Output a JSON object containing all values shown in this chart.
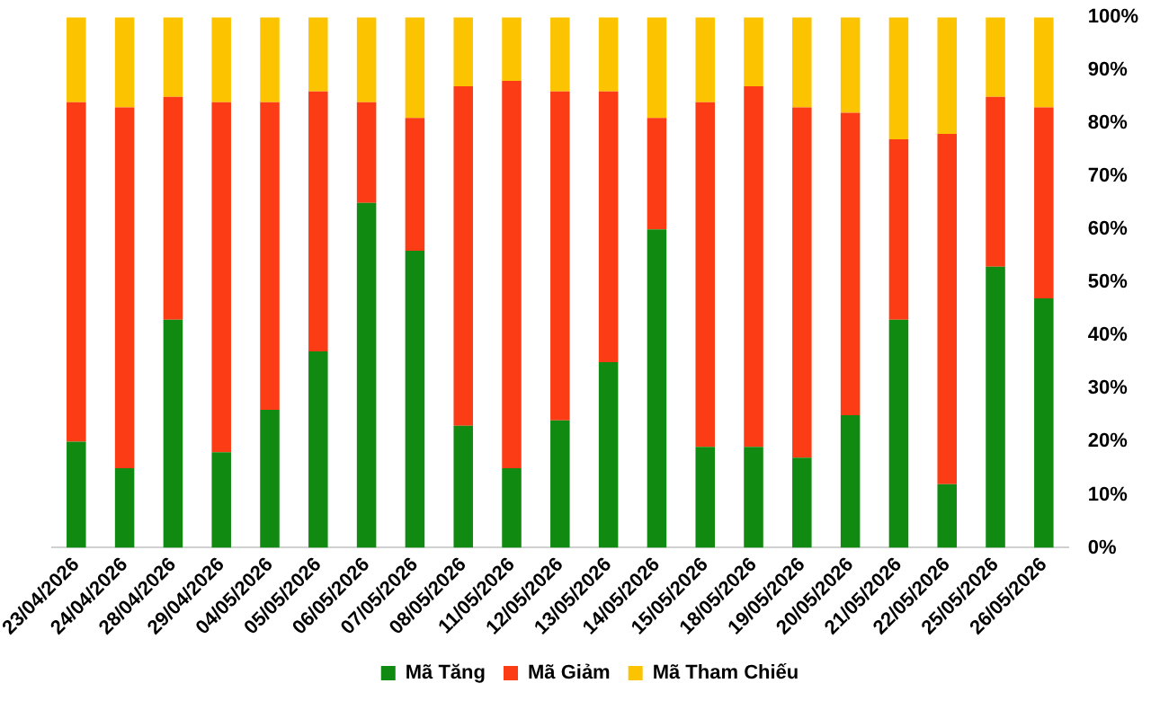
{
  "chart_data": {
    "type": "bar",
    "stacked": true,
    "categories": [
      "23/04/2026",
      "24/04/2026",
      "28/04/2026",
      "29/04/2026",
      "04/05/2026",
      "05/05/2026",
      "06/05/2026",
      "07/05/2026",
      "08/05/2026",
      "11/05/2026",
      "12/05/2026",
      "13/05/2026",
      "14/05/2026",
      "15/05/2026",
      "18/05/2026",
      "19/05/2026",
      "20/05/2026",
      "21/05/2026",
      "22/05/2026",
      "25/05/2026",
      "26/05/2026"
    ],
    "series": [
      {
        "name": "Mã Tăng",
        "color": "#108a10",
        "values": [
          20,
          15,
          43,
          18,
          26,
          37,
          65,
          56,
          23,
          15,
          24,
          35,
          60,
          19,
          19,
          17,
          25,
          43,
          12,
          53,
          47
        ]
      },
      {
        "name": "Mã Giảm",
        "color": "#fc3c14",
        "values": [
          64,
          68,
          42,
          66,
          58,
          49,
          19,
          25,
          64,
          73,
          62,
          51,
          21,
          65,
          68,
          66,
          57,
          34,
          66,
          32,
          36
        ]
      },
      {
        "name": "Mã Tham Chiếu",
        "color": "#fcc400",
        "values": [
          16,
          17,
          15,
          16,
          16,
          14,
          16,
          19,
          13,
          12,
          14,
          14,
          19,
          16,
          13,
          17,
          18,
          23,
          22,
          15,
          17
        ]
      }
    ],
    "ylim": [
      0,
      100
    ],
    "yticks": [
      {
        "value": 0,
        "label": "0%"
      },
      {
        "value": 10,
        "label": "10%"
      },
      {
        "value": 20,
        "label": "20%"
      },
      {
        "value": 30,
        "label": "30%"
      },
      {
        "value": 40,
        "label": "40%"
      },
      {
        "value": 50,
        "label": "50%"
      },
      {
        "value": 60,
        "label": "60%"
      },
      {
        "value": 70,
        "label": "70%"
      },
      {
        "value": 80,
        "label": "80%"
      },
      {
        "value": 90,
        "label": "90%"
      },
      {
        "value": 100,
        "label": "100%"
      }
    ],
    "grid": false,
    "legend": "bottom"
  }
}
